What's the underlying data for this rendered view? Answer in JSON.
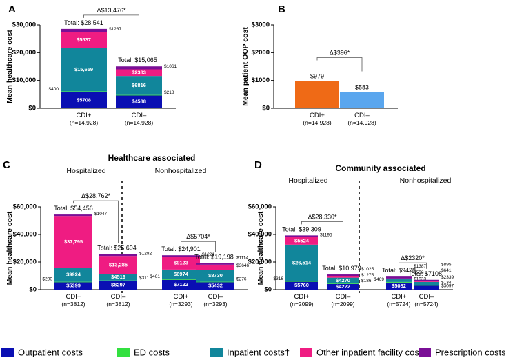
{
  "colors": {
    "outpatient": "#0a0fb3",
    "ed": "#33e040",
    "inpatient": "#11869b",
    "other": "#ef1c82",
    "rx": "#7a0f96",
    "cdi_pos": "#ef6a16",
    "cdi_neg": "#5aa6ee"
  },
  "legend": [
    {
      "key": "outpatient",
      "label": "Outpatient costs"
    },
    {
      "key": "ed",
      "label": "ED costs"
    },
    {
      "key": "inpatient",
      "label": "Inpatient costs†"
    },
    {
      "key": "other",
      "label": "Other inpatient facility costs‡"
    },
    {
      "key": "rx",
      "label": "Prescription costs"
    }
  ],
  "chart_data": [
    {
      "id": "A",
      "letter": "A",
      "type": "bar",
      "stacked": true,
      "title": "",
      "ylabel": "Mean healthcare cost",
      "ylim": [
        0,
        30000
      ],
      "yticks": [
        "$0",
        "$10,000",
        "$20,000",
        "$30,000"
      ],
      "groups": [
        {
          "name": "",
          "bars": [
            {
              "label": "CDI+",
              "n": "(n=14,928)",
              "total": "Total: $28,541",
              "segments": [
                {
                  "key": "outpatient",
                  "value": 5708,
                  "label": "$5708",
                  "side": false
                },
                {
                  "key": "ed",
                  "value": 400,
                  "label": "$400",
                  "side": true
                },
                {
                  "key": "inpatient",
                  "value": 15659,
                  "label": "$15,659",
                  "side": false
                },
                {
                  "key": "other",
                  "value": 5537,
                  "label": "$5537",
                  "side": false
                },
                {
                  "key": "rx",
                  "value": 1237,
                  "label": "$1237",
                  "side": false
                }
              ]
            },
            {
              "label": "CDI–",
              "n": "(n=14,928)",
              "total": "Total: $15,065",
              "segments": [
                {
                  "key": "outpatient",
                  "value": 4588,
                  "label": "$4588",
                  "side": false
                },
                {
                  "key": "ed",
                  "value": 218,
                  "label": "$218",
                  "side": true
                },
                {
                  "key": "inpatient",
                  "value": 6816,
                  "label": "$6816",
                  "side": false
                },
                {
                  "key": "other",
                  "value": 2383,
                  "label": "$2383",
                  "side": false
                },
                {
                  "key": "rx",
                  "value": 1061,
                  "label": "$1061",
                  "side": true
                }
              ]
            }
          ],
          "delta": "Δ$13,476*"
        }
      ]
    },
    {
      "id": "B",
      "letter": "B",
      "type": "bar",
      "stacked": false,
      "title": "",
      "ylabel": "Mean patient OOP cost",
      "ylim": [
        0,
        3000
      ],
      "yticks": [
        "$0",
        "$1000",
        "$2000",
        "$3000"
      ],
      "groups": [
        {
          "name": "",
          "bars": [
            {
              "label": "CDI+",
              "n": "(n=14,928)",
              "value": 979,
              "value_label": "$979",
              "color": "cdi_pos"
            },
            {
              "label": "CDI–",
              "n": "(n=14,928)",
              "value": 583,
              "value_label": "$583",
              "color": "cdi_neg"
            }
          ],
          "delta": "Δ$396*"
        }
      ]
    },
    {
      "id": "C",
      "letter": "C",
      "type": "bar",
      "stacked": true,
      "title": "Healthcare associated",
      "ylabel": "Mean healthcare cost",
      "ylim": [
        0,
        60000
      ],
      "yticks": [
        "$0",
        "$20,000",
        "$40,000",
        "$60,000"
      ],
      "groups": [
        {
          "name": "Hospitalized",
          "bars": [
            {
              "label": "CDI+",
              "n": "(n=3812)",
              "total": "Total: $54,456",
              "segments": [
                {
                  "key": "outpatient",
                  "value": 5399,
                  "label": "$5399",
                  "side": false
                },
                {
                  "key": "ed",
                  "value": 290,
                  "label": "$290",
                  "side": true
                },
                {
                  "key": "inpatient",
                  "value": 9924,
                  "label": "$9924",
                  "side": false
                },
                {
                  "key": "other",
                  "value": 37795,
                  "label": "$37,795",
                  "side": false
                },
                {
                  "key": "rx",
                  "value": 1047,
                  "label": "$1047",
                  "side": true
                }
              ]
            },
            {
              "label": "CDI–",
              "n": "(n=3812)",
              "total": "Total: $25,694",
              "segments": [
                {
                  "key": "outpatient",
                  "value": 6297,
                  "label": "$6297",
                  "side": false
                },
                {
                  "key": "ed",
                  "value": 311,
                  "label": "$311",
                  "side": true
                },
                {
                  "key": "inpatient",
                  "value": 4519,
                  "label": "$4519",
                  "side": false
                },
                {
                  "key": "other",
                  "value": 13285,
                  "label": "$13,285",
                  "side": false
                },
                {
                  "key": "rx",
                  "value": 1282,
                  "label": "$1282",
                  "side": true
                }
              ]
            }
          ],
          "delta": "Δ$28,762*"
        },
        {
          "name": "Nonhospitalized",
          "bars": [
            {
              "label": "CDI+",
              "n": "(n=3293)",
              "total": "Total: $24,901",
              "segments": [
                {
                  "key": "outpatient",
                  "value": 7122,
                  "label": "$7122",
                  "side": false
                },
                {
                  "key": "ed",
                  "value": 461,
                  "label": "$461",
                  "side": true
                },
                {
                  "key": "inpatient",
                  "value": 6974,
                  "label": "$6974",
                  "side": false
                },
                {
                  "key": "other",
                  "value": 9123,
                  "label": "$9123",
                  "side": false
                },
                {
                  "key": "rx",
                  "value": 1221,
                  "label": "$1221",
                  "side": true
                }
              ]
            },
            {
              "label": "CDI–",
              "n": "(n=3293)",
              "total": "Total: $19,198",
              "segments": [
                {
                  "key": "outpatient",
                  "value": 5432,
                  "label": "$5432",
                  "side": false
                },
                {
                  "key": "ed",
                  "value": 276,
                  "label": "$276",
                  "side": true
                },
                {
                  "key": "inpatient",
                  "value": 8730,
                  "label": "$8730",
                  "side": false
                },
                {
                  "key": "other",
                  "value": 3646,
                  "label": "$3646",
                  "side": false
                },
                {
                  "key": "rx",
                  "value": 1114,
                  "label": "$1114",
                  "side": true
                }
              ]
            }
          ],
          "delta": "Δ$5704*"
        }
      ]
    },
    {
      "id": "D",
      "letter": "D",
      "type": "bar",
      "stacked": true,
      "title": "Community associated",
      "ylabel": "Mean healthcare cost",
      "ylim": [
        0,
        60000
      ],
      "yticks": [
        "$0",
        "$20,000",
        "$40,000",
        "$60,000"
      ],
      "groups": [
        {
          "name": "Hospitalized",
          "bars": [
            {
              "label": "CDI+",
              "n": "(n=2099)",
              "total": "Total: $39,309",
              "segments": [
                {
                  "key": "outpatient",
                  "value": 5760,
                  "label": "$5760",
                  "side": false
                },
                {
                  "key": "ed",
                  "value": 316,
                  "label": "$316",
                  "side": true
                },
                {
                  "key": "inpatient",
                  "value": 26514,
                  "label": "$26,514",
                  "side": false
                },
                {
                  "key": "other",
                  "value": 5524,
                  "label": "$5524",
                  "side": false
                },
                {
                  "key": "rx",
                  "value": 1195,
                  "label": "$1195",
                  "side": true
                }
              ]
            },
            {
              "label": "CDI–",
              "n": "(n=2099)",
              "total": "Total: $10,979",
              "segments": [
                {
                  "key": "outpatient",
                  "value": 4222,
                  "label": "$4222",
                  "side": false
                },
                {
                  "key": "ed",
                  "value": 186,
                  "label": "$186",
                  "side": true
                },
                {
                  "key": "inpatient",
                  "value": 4270,
                  "label": "$4270",
                  "side": false
                },
                {
                  "key": "other",
                  "value": 1275,
                  "label": "$1275",
                  "side": true
                },
                {
                  "key": "rx",
                  "value": 1025,
                  "label": "$1025",
                  "side": true
                }
              ]
            }
          ],
          "delta": "Δ$28,330*"
        },
        {
          "name": "Nonhospitalized",
          "bars": [
            {
              "label": "CDI+",
              "n": "(n=5724)",
              "total": "Total: $9428",
              "segments": [
                {
                  "key": "outpatient",
                  "value": 5082,
                  "label": "$5082",
                  "side": false
                },
                {
                  "key": "ed",
                  "value": 469,
                  "label": "$469",
                  "side": true
                },
                {
                  "key": "inpatient",
                  "value": 1933,
                  "label": "$1933",
                  "side": false
                },
                {
                  "key": "other",
                  "value": 558,
                  "label": "$558",
                  "side": true
                },
                {
                  "key": "rx",
                  "value": 1387,
                  "label": "$1387",
                  "side": true
                }
              ]
            },
            {
              "label": "CDI–",
              "n": "(n=5724)",
              "total": "Total: $7108",
              "segments": [
                {
                  "key": "outpatient",
                  "value": 3097,
                  "label": "$3097",
                  "side": false
                },
                {
                  "key": "ed",
                  "value": 134,
                  "label": "$134",
                  "side": true
                },
                {
                  "key": "inpatient",
                  "value": 2339,
                  "label": "$2339",
                  "side": false
                },
                {
                  "key": "other",
                  "value": 641,
                  "label": "$641",
                  "side": true
                },
                {
                  "key": "rx",
                  "value": 895,
                  "label": "$895",
                  "side": true
                }
              ]
            }
          ],
          "delta": "Δ$2320*"
        }
      ]
    }
  ]
}
